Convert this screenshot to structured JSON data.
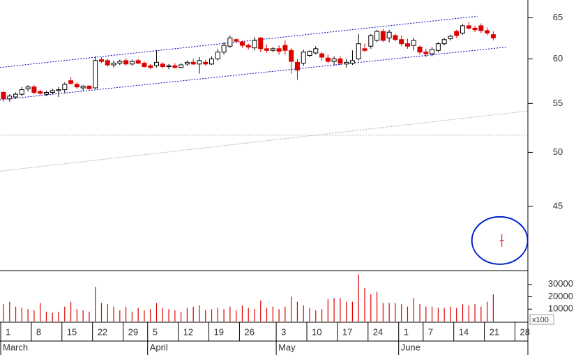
{
  "chart_data": {
    "type": "candlestick",
    "log_scale": true,
    "xlim": [
      -0.57,
      85.65
    ],
    "ylim": [
      39.7,
      67.3
    ],
    "yticks": [
      45,
      50,
      55,
      60,
      65
    ],
    "xticks": [
      {
        "value": 0,
        "label": "1"
      },
      {
        "value": 5,
        "label": "8"
      },
      {
        "value": 10,
        "label": "15"
      },
      {
        "value": 15,
        "label": "22"
      },
      {
        "value": 20,
        "label": "29"
      },
      {
        "value": 24,
        "label": "5"
      },
      {
        "value": 29,
        "label": "12"
      },
      {
        "value": 34,
        "label": "19"
      },
      {
        "value": 39,
        "label": "26"
      },
      {
        "value": 45,
        "label": "3"
      },
      {
        "value": 50,
        "label": "10"
      },
      {
        "value": 55,
        "label": "17"
      },
      {
        "value": 60,
        "label": "24"
      },
      {
        "value": 65,
        "label": "1"
      },
      {
        "value": 69,
        "label": "7"
      },
      {
        "value": 74,
        "label": "14"
      },
      {
        "value": 79,
        "label": "21"
      },
      {
        "value": 84,
        "label": "28"
      }
    ],
    "months": [
      {
        "value": 0,
        "label": "March"
      },
      {
        "value": 24,
        "label": "April"
      },
      {
        "value": 45,
        "label": "May"
      },
      {
        "value": 65,
        "label": "June"
      }
    ],
    "up_color": "#ffffff",
    "down_color": "#dd0000",
    "x": [
      0,
      1,
      2,
      3,
      4,
      5,
      6,
      7,
      8,
      9,
      10,
      11,
      12,
      13,
      14,
      15,
      16,
      17,
      18,
      19,
      20,
      21,
      22,
      23,
      24,
      25,
      26,
      27,
      28,
      29,
      30,
      31,
      32,
      33,
      34,
      35,
      36,
      37,
      38,
      39,
      40,
      41,
      42,
      43,
      44,
      45,
      46,
      47,
      48,
      49,
      50,
      51,
      52,
      53,
      54,
      55,
      56,
      57,
      58,
      59,
      60,
      61,
      62,
      63,
      64,
      65,
      66,
      67,
      68,
      69,
      70,
      71,
      72,
      73,
      74,
      75,
      76,
      77,
      78,
      79,
      80
    ],
    "open": [
      56.2,
      55.5,
      55.7,
      56.0,
      56.6,
      56.8,
      56.3,
      56.0,
      56.2,
      56.4,
      56.5,
      57.5,
      57.1,
      56.7,
      56.9,
      56.7,
      59.9,
      59.8,
      59.3,
      59.5,
      59.8,
      59.4,
      59.8,
      59.5,
      59.2,
      59.2,
      59.4,
      59.1,
      59.2,
      59.0,
      59.4,
      59.6,
      59.4,
      59.6,
      59.4,
      60.0,
      60.8,
      61.5,
      62.3,
      62.0,
      61.6,
      61.3,
      62.5,
      61.2,
      61.0,
      61.2,
      61.6,
      61.0,
      59.6,
      59.5,
      60.4,
      60.7,
      60.6,
      60.1,
      59.7,
      60.0,
      59.4,
      59.5,
      60.0,
      61.2,
      61.5,
      62.2,
      63.3,
      62.5,
      62.8,
      62.3,
      61.8,
      61.6,
      61.4,
      60.8,
      60.6,
      61.0,
      61.8,
      62.4,
      63.3,
      63.1,
      64.0,
      63.7,
      64.0,
      63.4,
      62.9
    ],
    "high": [
      56.4,
      56.0,
      56.2,
      56.8,
      57.0,
      57.0,
      56.5,
      56.4,
      56.6,
      56.8,
      57.3,
      57.9,
      57.3,
      57.0,
      57.0,
      60.3,
      60.2,
      60.0,
      59.8,
      59.9,
      60.1,
      59.9,
      60.0,
      59.7,
      59.4,
      61.0,
      59.6,
      59.4,
      59.5,
      59.5,
      59.8,
      60.0,
      60.2,
      59.9,
      60.3,
      61.2,
      62.0,
      62.8,
      62.5,
      62.2,
      61.8,
      62.6,
      62.6,
      61.7,
      61.4,
      61.6,
      62.2,
      61.3,
      60.0,
      61.1,
      61.0,
      61.5,
      60.8,
      60.5,
      60.3,
      60.3,
      60.0,
      61.0,
      63.0,
      61.8,
      63.0,
      63.5,
      63.6,
      63.5,
      63.0,
      62.8,
      62.4,
      62.5,
      61.6,
      61.2,
      61.4,
      62.0,
      62.5,
      62.9,
      63.5,
      64.2,
      64.5,
      64.0,
      64.3,
      63.8,
      63.3
    ],
    "low": [
      55.2,
      55.2,
      55.5,
      55.8,
      56.3,
      56.0,
      55.9,
      55.8,
      56.0,
      55.7,
      56.1,
      57.0,
      56.6,
      56.4,
      56.5,
      56.6,
      59.5,
      59.1,
      59.0,
      59.3,
      59.2,
      59.2,
      59.4,
      59.0,
      58.8,
      59.0,
      58.9,
      58.8,
      58.9,
      58.9,
      59.2,
      59.3,
      58.3,
      59.2,
      59.3,
      59.8,
      60.5,
      61.3,
      61.9,
      61.3,
      61.1,
      61.0,
      60.8,
      60.7,
      60.8,
      60.5,
      60.5,
      58.3,
      57.6,
      59.2,
      60.2,
      60.5,
      59.8,
      59.5,
      59.2,
      59.3,
      59.0,
      59.3,
      59.8,
      60.8,
      61.2,
      62.0,
      62.0,
      62.0,
      62.1,
      61.5,
      61.2,
      61.0,
      60.5,
      60.2,
      60.3,
      60.8,
      61.6,
      62.2,
      62.5,
      62.9,
      63.5,
      63.2,
      63.1,
      62.8,
      62.2
    ],
    "close": [
      55.5,
      55.8,
      56.0,
      56.5,
      56.8,
      56.2,
      56.1,
      56.2,
      56.4,
      56.5,
      57.1,
      57.2,
      56.8,
      56.9,
      56.6,
      59.8,
      59.7,
      59.3,
      59.5,
      59.7,
      59.4,
      59.7,
      59.5,
      59.1,
      59.0,
      59.6,
      59.1,
      59.2,
      59.0,
      59.3,
      59.6,
      59.4,
      59.8,
      59.4,
      60.0,
      60.8,
      61.6,
      62.5,
      62.1,
      61.6,
      61.4,
      62.2,
      61.2,
      61.0,
      61.2,
      60.9,
      61.0,
      59.7,
      58.7,
      60.8,
      60.9,
      61.2,
      60.2,
      59.7,
      60.0,
      59.5,
      59.6,
      59.8,
      61.8,
      61.0,
      62.8,
      63.3,
      62.2,
      63.2,
      62.3,
      61.8,
      61.5,
      62.2,
      60.8,
      60.6,
      61.1,
      61.8,
      62.3,
      62.7,
      62.8,
      64.0,
      63.7,
      63.5,
      63.4,
      63.1,
      62.5
    ],
    "volume": {
      "label": "x100",
      "color": "#dd0000",
      "ylim": [
        0,
        40000
      ],
      "yticks": [
        10000,
        20000,
        30000
      ],
      "values": [
        14000,
        16000,
        12000,
        11000,
        10000,
        9000,
        15000,
        8000,
        7000,
        8000,
        12000,
        16000,
        10000,
        9000,
        8000,
        28000,
        15000,
        14000,
        12000,
        9000,
        12000,
        8000,
        11000,
        9000,
        10000,
        15000,
        11000,
        10000,
        9000,
        8000,
        11000,
        12000,
        13000,
        9000,
        10000,
        11000,
        10000,
        12000,
        9000,
        13000,
        11000,
        10000,
        17000,
        11000,
        12000,
        10000,
        12000,
        20000,
        16000,
        13000,
        11000,
        9000,
        10000,
        18000,
        19000,
        19000,
        16000,
        16000,
        38000,
        27000,
        22000,
        24000,
        15000,
        15000,
        15000,
        14000,
        12000,
        19000,
        14000,
        12000,
        12000,
        11000,
        11000,
        12000,
        11000,
        14000,
        13000,
        14000,
        12000,
        16000,
        22000
      ]
    },
    "lines": [
      {
        "x": [
          -0.6,
          77.4
        ],
        "values": [
          59.0,
          65.2
        ],
        "color": "#0000bb",
        "dash": "2,2"
      },
      {
        "x": [
          -0.6,
          82.2
        ],
        "values": [
          55.4,
          61.4
        ],
        "color": "#0000bb",
        "dash": "2,2"
      },
      {
        "x": [
          -0.6,
          85.6
        ],
        "values": [
          48.2,
          54.2
        ],
        "color": "#aaaaaa",
        "dash": "2,2"
      },
      {
        "x": [
          -0.6,
          85.6
        ],
        "values": [
          51.7,
          51.7
        ],
        "color": "#bbbbbb",
        "dash": "2,2"
      }
    ],
    "marker": {
      "x": 81.4,
      "value": 42.1,
      "color": "#dd0000",
      "circle_color": "#0022cc"
    }
  }
}
